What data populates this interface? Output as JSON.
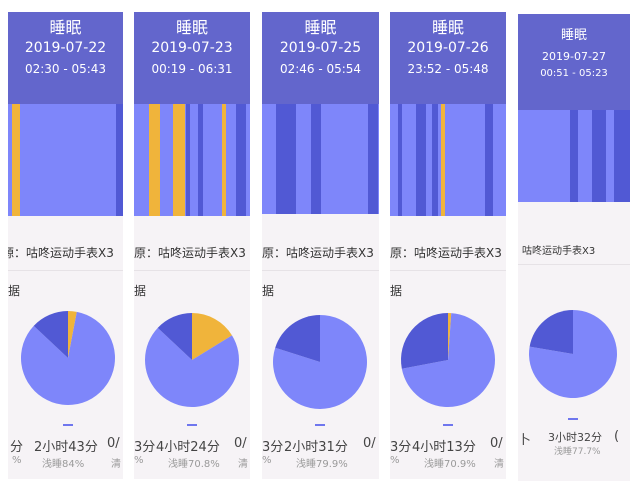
{
  "panels": [
    {
      "title": "睡眠",
      "date": "2019-07-22",
      "time_range": "02:30 - 05:43",
      "source": "源：咕咚运动手表X3",
      "section": "据",
      "stat_left": "分",
      "stat_center": "2小时43分",
      "stat_right": "0/",
      "sub_left": "%",
      "sub_center": "浅睡84%",
      "sub_right": "清",
      "pie": {
        "light": 84,
        "deep": 13,
        "awake": 3
      }
    },
    {
      "title": "睡眠",
      "date": "2019-07-23",
      "time_range": "00:19 - 06:31",
      "source": "原：咕咚运动手表X3",
      "section": "据",
      "stat_left": "3分",
      "stat_center": "4小时24分",
      "stat_right": "0/",
      "sub_left": "%",
      "sub_center": "浅睡70.8%",
      "sub_right": "清",
      "pie": {
        "light": 70.8,
        "deep": 13,
        "awake": 16.2
      }
    },
    {
      "title": "睡眠",
      "date": "2019-07-25",
      "time_range": "02:46 - 05:54",
      "source": "原：咕咚运动手表X3",
      "section": "据",
      "stat_left": "3分",
      "stat_center": "2小时31分",
      "stat_right": "0/",
      "sub_left": "%",
      "sub_center": "浅睡79.9%",
      "sub_right": "",
      "pie": {
        "light": 79.9,
        "deep": 20.1,
        "awake": 0
      }
    },
    {
      "title": "睡眠",
      "date": "2019-07-26",
      "time_range": "23:52 - 05:48",
      "source": "原：咕咚运动手表X3",
      "section": "据",
      "stat_left": "3分",
      "stat_center": "4小时13分",
      "stat_right": "0/",
      "sub_left": "%",
      "sub_center": "浅睡70.9%",
      "sub_right": "清",
      "pie": {
        "light": 70.9,
        "deep": 28,
        "awake": 1.1
      }
    },
    {
      "title": "睡眠",
      "date": "2019-07-27",
      "time_range": "00:51 - 05:23",
      "source": "咕咚运动手表X3",
      "section": "",
      "stat_left": "卜",
      "stat_center": "3小时32分",
      "stat_right": "(",
      "sub_left": "",
      "sub_center": "浅睡77.7%",
      "sub_right": "",
      "pie": {
        "light": 77.7,
        "deep": 22.3,
        "awake": 0
      }
    }
  ],
  "colors": {
    "header": "#6366cc",
    "light_sleep": "#7e86fa",
    "deep_sleep": "#5159d4",
    "awake": "#f0b43b"
  }
}
